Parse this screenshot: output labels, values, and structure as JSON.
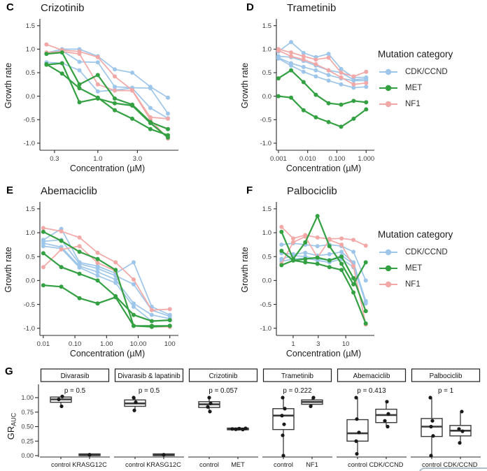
{
  "figure": {
    "legend": {
      "title": "Mutation category",
      "entries": [
        {
          "label": "CDK/CCND",
          "color_key": "CDK/CCND"
        },
        {
          "label": "MET",
          "color_key": "MET"
        },
        {
          "label": "NF1",
          "color_key": "NF1"
        }
      ]
    },
    "colors": {
      "CDK/CCND": "#9ec6ea",
      "MET": "#33a042",
      "NF1": "#f2a8a6",
      "box_outline": "#3a3a3a",
      "point": "#191919",
      "axis": "#2b2b2b",
      "tick_text": "#3d3d3d"
    }
  },
  "chart_data": [
    {
      "type": "line",
      "panel_letter": "C",
      "title": "Crizotinib",
      "xlabel": "Concentration (µM)",
      "ylabel": "Growth rate",
      "xscale": "log",
      "xlim": [
        0.2,
        8.5
      ],
      "ylim": [
        -1.15,
        1.6
      ],
      "xticks": [
        0.3,
        1.0,
        3.0
      ],
      "xtick_labels": [
        "0.3",
        "1.0",
        "3.0"
      ],
      "yticks": [
        -1.0,
        -0.5,
        0.0,
        0.5,
        1.0,
        1.5
      ],
      "ytick_labels": [
        "-1.0",
        "-0.5",
        "0.0",
        "0.5",
        "1.0",
        "1.5"
      ],
      "x": [
        0.24,
        0.37,
        0.6,
        1.0,
        1.6,
        2.6,
        4.3,
        7.0
      ],
      "series": [
        {
          "category": "CDK/CCND",
          "values": [
            0.92,
            1.0,
            1.0,
            0.85,
            0.57,
            0.5,
            0.2,
            -0.03
          ]
        },
        {
          "category": "CDK/CCND",
          "values": [
            0.9,
            0.97,
            0.73,
            0.72,
            0.2,
            0.18,
            0.17,
            -0.37
          ]
        },
        {
          "category": "CDK/CCND",
          "values": [
            0.72,
            0.7,
            0.55,
            0.1,
            0.13,
            0.17,
            -0.25,
            -0.47
          ]
        },
        {
          "category": "NF1",
          "values": [
            1.1,
            0.98,
            0.95,
            0.83,
            0.42,
            0.13,
            -0.45,
            -0.48
          ]
        },
        {
          "category": "NF1",
          "values": [
            0.93,
            0.95,
            0.9,
            0.25,
            0.12,
            0.12,
            -0.5,
            -0.9
          ]
        },
        {
          "category": "MET",
          "values": [
            0.9,
            0.93,
            0.25,
            0.45,
            -0.05,
            -0.18,
            -0.55,
            -0.7
          ]
        },
        {
          "category": "MET",
          "values": [
            0.68,
            0.48,
            0.17,
            -0.03,
            -0.3,
            -0.48,
            -0.7,
            -0.83
          ]
        },
        {
          "category": "MET",
          "values": [
            0.67,
            0.7,
            -0.13,
            -0.05,
            -0.15,
            -0.2,
            -0.57,
            -0.88
          ]
        }
      ]
    },
    {
      "type": "line",
      "panel_letter": "D",
      "title": "Trametinib",
      "xlabel": "Concentration (µM)",
      "ylabel": "Growth rate",
      "xscale": "log",
      "xlim": [
        0.00085,
        1.45
      ],
      "ylim": [
        -1.15,
        1.6
      ],
      "xticks": [
        0.001,
        0.01,
        0.1,
        1.0
      ],
      "xtick_labels": [
        "0.001",
        "0.010",
        "0.100",
        "1.000"
      ],
      "yticks": [
        -1.0,
        -0.5,
        0.0,
        0.5,
        1.0,
        1.5
      ],
      "ytick_labels": [
        "-1.0",
        "-0.5",
        "0.0",
        "0.5",
        "1.0",
        "1.5"
      ],
      "x": [
        0.001,
        0.0027,
        0.0072,
        0.019,
        0.052,
        0.139,
        0.373,
        1.0
      ],
      "series": [
        {
          "category": "CDK/CCND",
          "values": [
            0.95,
            1.15,
            0.92,
            0.83,
            0.9,
            0.58,
            0.4,
            0.4
          ]
        },
        {
          "category": "CDK/CCND",
          "values": [
            0.85,
            0.83,
            0.75,
            0.65,
            0.55,
            0.5,
            0.35,
            0.37
          ]
        },
        {
          "category": "CDK/CCND",
          "values": [
            0.82,
            0.7,
            0.62,
            0.55,
            0.45,
            0.38,
            0.33,
            0.33
          ]
        },
        {
          "category": "CDK/CCND",
          "values": [
            0.8,
            0.65,
            0.52,
            0.42,
            0.33,
            0.25,
            0.18,
            0.2
          ]
        },
        {
          "category": "NF1",
          "values": [
            1.0,
            0.93,
            0.85,
            0.78,
            0.82,
            0.5,
            0.42,
            0.52
          ]
        },
        {
          "category": "NF1",
          "values": [
            0.97,
            0.85,
            0.78,
            0.68,
            0.55,
            0.4,
            0.25,
            0.28
          ]
        },
        {
          "category": "MET",
          "values": [
            0.38,
            0.55,
            0.3,
            0.03,
            -0.15,
            -0.18,
            -0.1,
            -0.13
          ]
        },
        {
          "category": "MET",
          "values": [
            0.0,
            -0.03,
            -0.3,
            -0.45,
            -0.55,
            -0.65,
            -0.48,
            -0.28
          ]
        }
      ]
    },
    {
      "type": "line",
      "panel_letter": "E",
      "title": "Abemaciclib",
      "xlabel": "Concentration (µM)",
      "ylabel": "Growth rate",
      "xscale": "log",
      "xlim": [
        0.0078,
        145
      ],
      "ylim": [
        -1.15,
        1.6
      ],
      "xticks": [
        0.01,
        0.1,
        1.0,
        10.0,
        100
      ],
      "xtick_labels": [
        "0.01",
        "0.10",
        "1.00",
        "10.00",
        "100"
      ],
      "yticks": [
        -1.0,
        -0.5,
        0.0,
        0.5,
        1.0,
        1.5
      ],
      "ytick_labels": [
        "-1.0",
        "-0.5",
        "0.0",
        "0.5",
        "1.0",
        "1.5"
      ],
      "x": [
        0.01,
        0.037,
        0.139,
        0.52,
        1.93,
        7.2,
        26.8,
        100
      ],
      "series": [
        {
          "category": "CDK/CCND",
          "values": [
            0.85,
            1.08,
            0.38,
            0.3,
            0.15,
            0.38,
            -0.55,
            -0.72
          ]
        },
        {
          "category": "CDK/CCND",
          "values": [
            0.82,
            0.85,
            0.35,
            0.25,
            0.1,
            -0.08,
            -0.62,
            -0.75
          ]
        },
        {
          "category": "CDK/CCND",
          "values": [
            0.78,
            0.7,
            0.3,
            0.18,
            0.02,
            -0.48,
            -0.72,
            -0.8
          ]
        },
        {
          "category": "CDK/CCND",
          "values": [
            0.72,
            0.67,
            0.27,
            0.1,
            -0.05,
            -0.55,
            -0.85,
            -0.83
          ]
        },
        {
          "category": "NF1",
          "values": [
            1.1,
            1.03,
            0.9,
            0.58,
            0.38,
            0.02,
            -0.62,
            -0.6
          ]
        },
        {
          "category": "NF1",
          "values": [
            0.28,
            0.65,
            0.72,
            0.37,
            0.2,
            -0.95,
            -0.97,
            -0.97
          ]
        },
        {
          "category": "MET",
          "values": [
            1.02,
            0.83,
            0.6,
            0.45,
            0.22,
            -0.95,
            -0.95,
            -0.95
          ]
        },
        {
          "category": "MET",
          "values": [
            0.57,
            0.28,
            0.14,
            0.0,
            -0.33,
            -0.72,
            -0.85,
            -0.83
          ]
        },
        {
          "category": "MET",
          "values": [
            -0.1,
            -0.13,
            -0.37,
            -0.48,
            -0.35,
            -0.95,
            -0.97,
            -0.95
          ]
        }
      ]
    },
    {
      "type": "line",
      "panel_letter": "F",
      "title": "Palbociclib",
      "xlabel": "Concentration (µM)",
      "ylabel": "Growth rate",
      "xscale": "log",
      "xlim": [
        0.48,
        30
      ],
      "ylim": [
        -1.15,
        1.6
      ],
      "xticks": [
        1,
        3,
        10
      ],
      "xtick_labels": [
        "1",
        "3",
        "10"
      ],
      "yticks": [
        -1.0,
        -0.5,
        0.0,
        0.5,
        1.0,
        1.5
      ],
      "ytick_labels": [
        "-1.0",
        "-0.5",
        "0.0",
        "0.5",
        "1.0",
        "1.5"
      ],
      "x": [
        0.6,
        1.0,
        1.7,
        2.9,
        4.9,
        8.3,
        14,
        24
      ],
      "series": [
        {
          "category": "CDK/CCND",
          "values": [
            0.75,
            0.78,
            0.75,
            0.72,
            0.75,
            0.72,
            0.6,
            0.0
          ]
        },
        {
          "category": "CDK/CCND",
          "values": [
            0.57,
            0.55,
            0.58,
            0.52,
            0.55,
            0.6,
            0.38,
            -0.43
          ]
        },
        {
          "category": "CDK/CCND",
          "values": [
            0.45,
            0.52,
            0.5,
            0.45,
            0.43,
            0.52,
            0.35,
            -0.48
          ]
        },
        {
          "category": "CDK/CCND",
          "values": [
            0.4,
            0.45,
            0.47,
            0.42,
            0.38,
            0.45,
            0.28,
            -0.45
          ]
        },
        {
          "category": "NF1",
          "values": [
            1.12,
            0.88,
            0.95,
            0.9,
            0.87,
            0.88,
            0.85,
            0.73
          ]
        },
        {
          "category": "NF1",
          "values": [
            0.35,
            0.8,
            0.92,
            0.48,
            0.85,
            0.75,
            0.3,
            -0.92
          ]
        },
        {
          "category": "MET",
          "values": [
            1.02,
            0.45,
            0.8,
            1.35,
            0.72,
            0.35,
            -0.08,
            0.38
          ]
        },
        {
          "category": "MET",
          "values": [
            0.62,
            0.42,
            0.45,
            0.48,
            0.42,
            0.5,
            0.05,
            -0.64
          ]
        },
        {
          "category": "MET",
          "values": [
            0.32,
            0.42,
            0.38,
            0.35,
            0.28,
            0.22,
            -0.25,
            -0.9
          ]
        }
      ]
    },
    {
      "type": "boxplot",
      "panel_letter": "G",
      "ylabel": "GR",
      "ylabel_sub": "AUC",
      "yticks": [
        0,
        0.25,
        0.5,
        0.75,
        1.0
      ],
      "ytick_labels": [
        "0.00",
        "0.25",
        "0.50",
        "0.75",
        "1.00"
      ],
      "facets": [
        {
          "label": "Divarasib",
          "p_label": "p = 0.5",
          "groups": [
            {
              "name": "control",
              "whisker_low": 0.84,
              "q1": 0.92,
              "median": 0.97,
              "q3": 1.01,
              "whisker_high": 1.02,
              "points": [
                {
                  "v": 1.02,
                  "dx": 2
                },
                {
                  "v": 0.97,
                  "dx": -3
                },
                {
                  "v": 0.85,
                  "dx": 1
                }
              ]
            },
            {
              "name": "KRASG12C",
              "whisker_low": 0.0,
              "q1": 0.0,
              "median": 0.015,
              "q3": 0.03,
              "whisker_high": 0.03,
              "points": [
                {
                  "v": 0.015,
                  "dx": 0
                }
              ]
            }
          ]
        },
        {
          "label": "Divarasib & lapatinib",
          "p_label": "p = 0.5",
          "groups": [
            {
              "name": "control",
              "whisker_low": 0.78,
              "q1": 0.85,
              "median": 0.9,
              "q3": 0.96,
              "whisker_high": 1.01,
              "points": [
                {
                  "v": 1.0,
                  "dx": -2
                },
                {
                  "v": 0.92,
                  "dx": 1
                },
                {
                  "v": 0.78,
                  "dx": -1
                }
              ]
            },
            {
              "name": "KRASG12C",
              "whisker_low": 0.0,
              "q1": 0.0,
              "median": 0.015,
              "q3": 0.03,
              "whisker_high": 0.03,
              "points": [
                {
                  "v": 0.015,
                  "dx": 0
                }
              ]
            }
          ]
        },
        {
          "label": "Crizotinib",
          "p_label": "p = 0.057",
          "groups": [
            {
              "name": "control",
              "whisker_low": 0.76,
              "q1": 0.83,
              "median": 0.885,
              "q3": 0.93,
              "whisker_high": 1.0,
              "points": [
                {
                  "v": 1.0,
                  "dx": 0
                },
                {
                  "v": 0.9,
                  "dx": 2
                },
                {
                  "v": 0.84,
                  "dx": -2
                },
                {
                  "v": 0.76,
                  "dx": 1
                }
              ]
            },
            {
              "name": "MET",
              "whisker_low": 0.43,
              "q1": 0.445,
              "median": 0.46,
              "q3": 0.475,
              "whisker_high": 0.49,
              "points": [
                {
                  "v": 0.46,
                  "dx": -8
                },
                {
                  "v": 0.455,
                  "dx": -3
                },
                {
                  "v": 0.465,
                  "dx": 2
                },
                {
                  "v": 0.45,
                  "dx": 7
                },
                {
                  "v": 0.47,
                  "dx": 11
                }
              ]
            }
          ]
        },
        {
          "label": "Trametinib",
          "p_label": "p = 0.222",
          "groups": [
            {
              "name": "control",
              "whisker_low": 0.0,
              "q1": 0.45,
              "median": 0.69,
              "q3": 0.81,
              "whisker_high": 1.0,
              "points": [
                {
                  "v": 1.0,
                  "dx": -1
                },
                {
                  "v": 0.81,
                  "dx": 2
                },
                {
                  "v": 0.69,
                  "dx": -2
                },
                {
                  "v": 0.54,
                  "dx": 1
                },
                {
                  "v": 0.35,
                  "dx": -1
                },
                {
                  "v": 0.0,
                  "dx": 0
                }
              ]
            },
            {
              "name": "NF1",
              "whisker_low": 0.85,
              "q1": 0.885,
              "median": 0.925,
              "q3": 0.96,
              "whisker_high": 1.0,
              "points": [
                {
                  "v": 1.0,
                  "dx": 2
                },
                {
                  "v": 0.85,
                  "dx": -2
                }
              ]
            }
          ]
        },
        {
          "label": "Abemaciclib",
          "p_label": "p = 0.413",
          "groups": [
            {
              "name": "control",
              "whisker_low": 0.03,
              "q1": 0.25,
              "median": 0.385,
              "q3": 0.62,
              "whisker_high": 1.0,
              "points": [
                {
                  "v": 1.0,
                  "dx": -2
                },
                {
                  "v": 0.63,
                  "dx": -1
                },
                {
                  "v": 0.4,
                  "dx": 2
                },
                {
                  "v": 0.25,
                  "dx": -2
                },
                {
                  "v": 0.03,
                  "dx": -1
                }
              ]
            },
            {
              "name": "CDK/CCND",
              "whisker_low": 0.5,
              "q1": 0.57,
              "median": 0.7,
              "q3": 0.8,
              "whisker_high": 0.93,
              "points": [
                {
                  "v": 0.93,
                  "dx": 1
                },
                {
                  "v": 0.72,
                  "dx": 3
                },
                {
                  "v": 0.6,
                  "dx": -2
                },
                {
                  "v": 0.5,
                  "dx": 2
                }
              ]
            }
          ]
        },
        {
          "label": "Palbociclib",
          "p_label": "p = 1",
          "groups": [
            {
              "name": "control",
              "whisker_low": 0.0,
              "q1": 0.33,
              "median": 0.5,
              "q3": 0.64,
              "whisker_high": 1.0,
              "points": [
                {
                  "v": 1.0,
                  "dx": -2
                },
                {
                  "v": 0.6,
                  "dx": 1
                },
                {
                  "v": 0.5,
                  "dx": -1
                },
                {
                  "v": 0.34,
                  "dx": 2
                },
                {
                  "v": 0.0,
                  "dx": -1
                }
              ]
            },
            {
              "name": "CDK/CCND",
              "whisker_low": 0.22,
              "q1": 0.34,
              "median": 0.43,
              "q3": 0.52,
              "whisker_high": 0.76,
              "points": [
                {
                  "v": 0.76,
                  "dx": 2
                },
                {
                  "v": 0.46,
                  "dx": -2
                },
                {
                  "v": 0.42,
                  "dx": 3
                },
                {
                  "v": 0.22,
                  "dx": -1
                }
              ]
            }
          ]
        }
      ]
    }
  ]
}
